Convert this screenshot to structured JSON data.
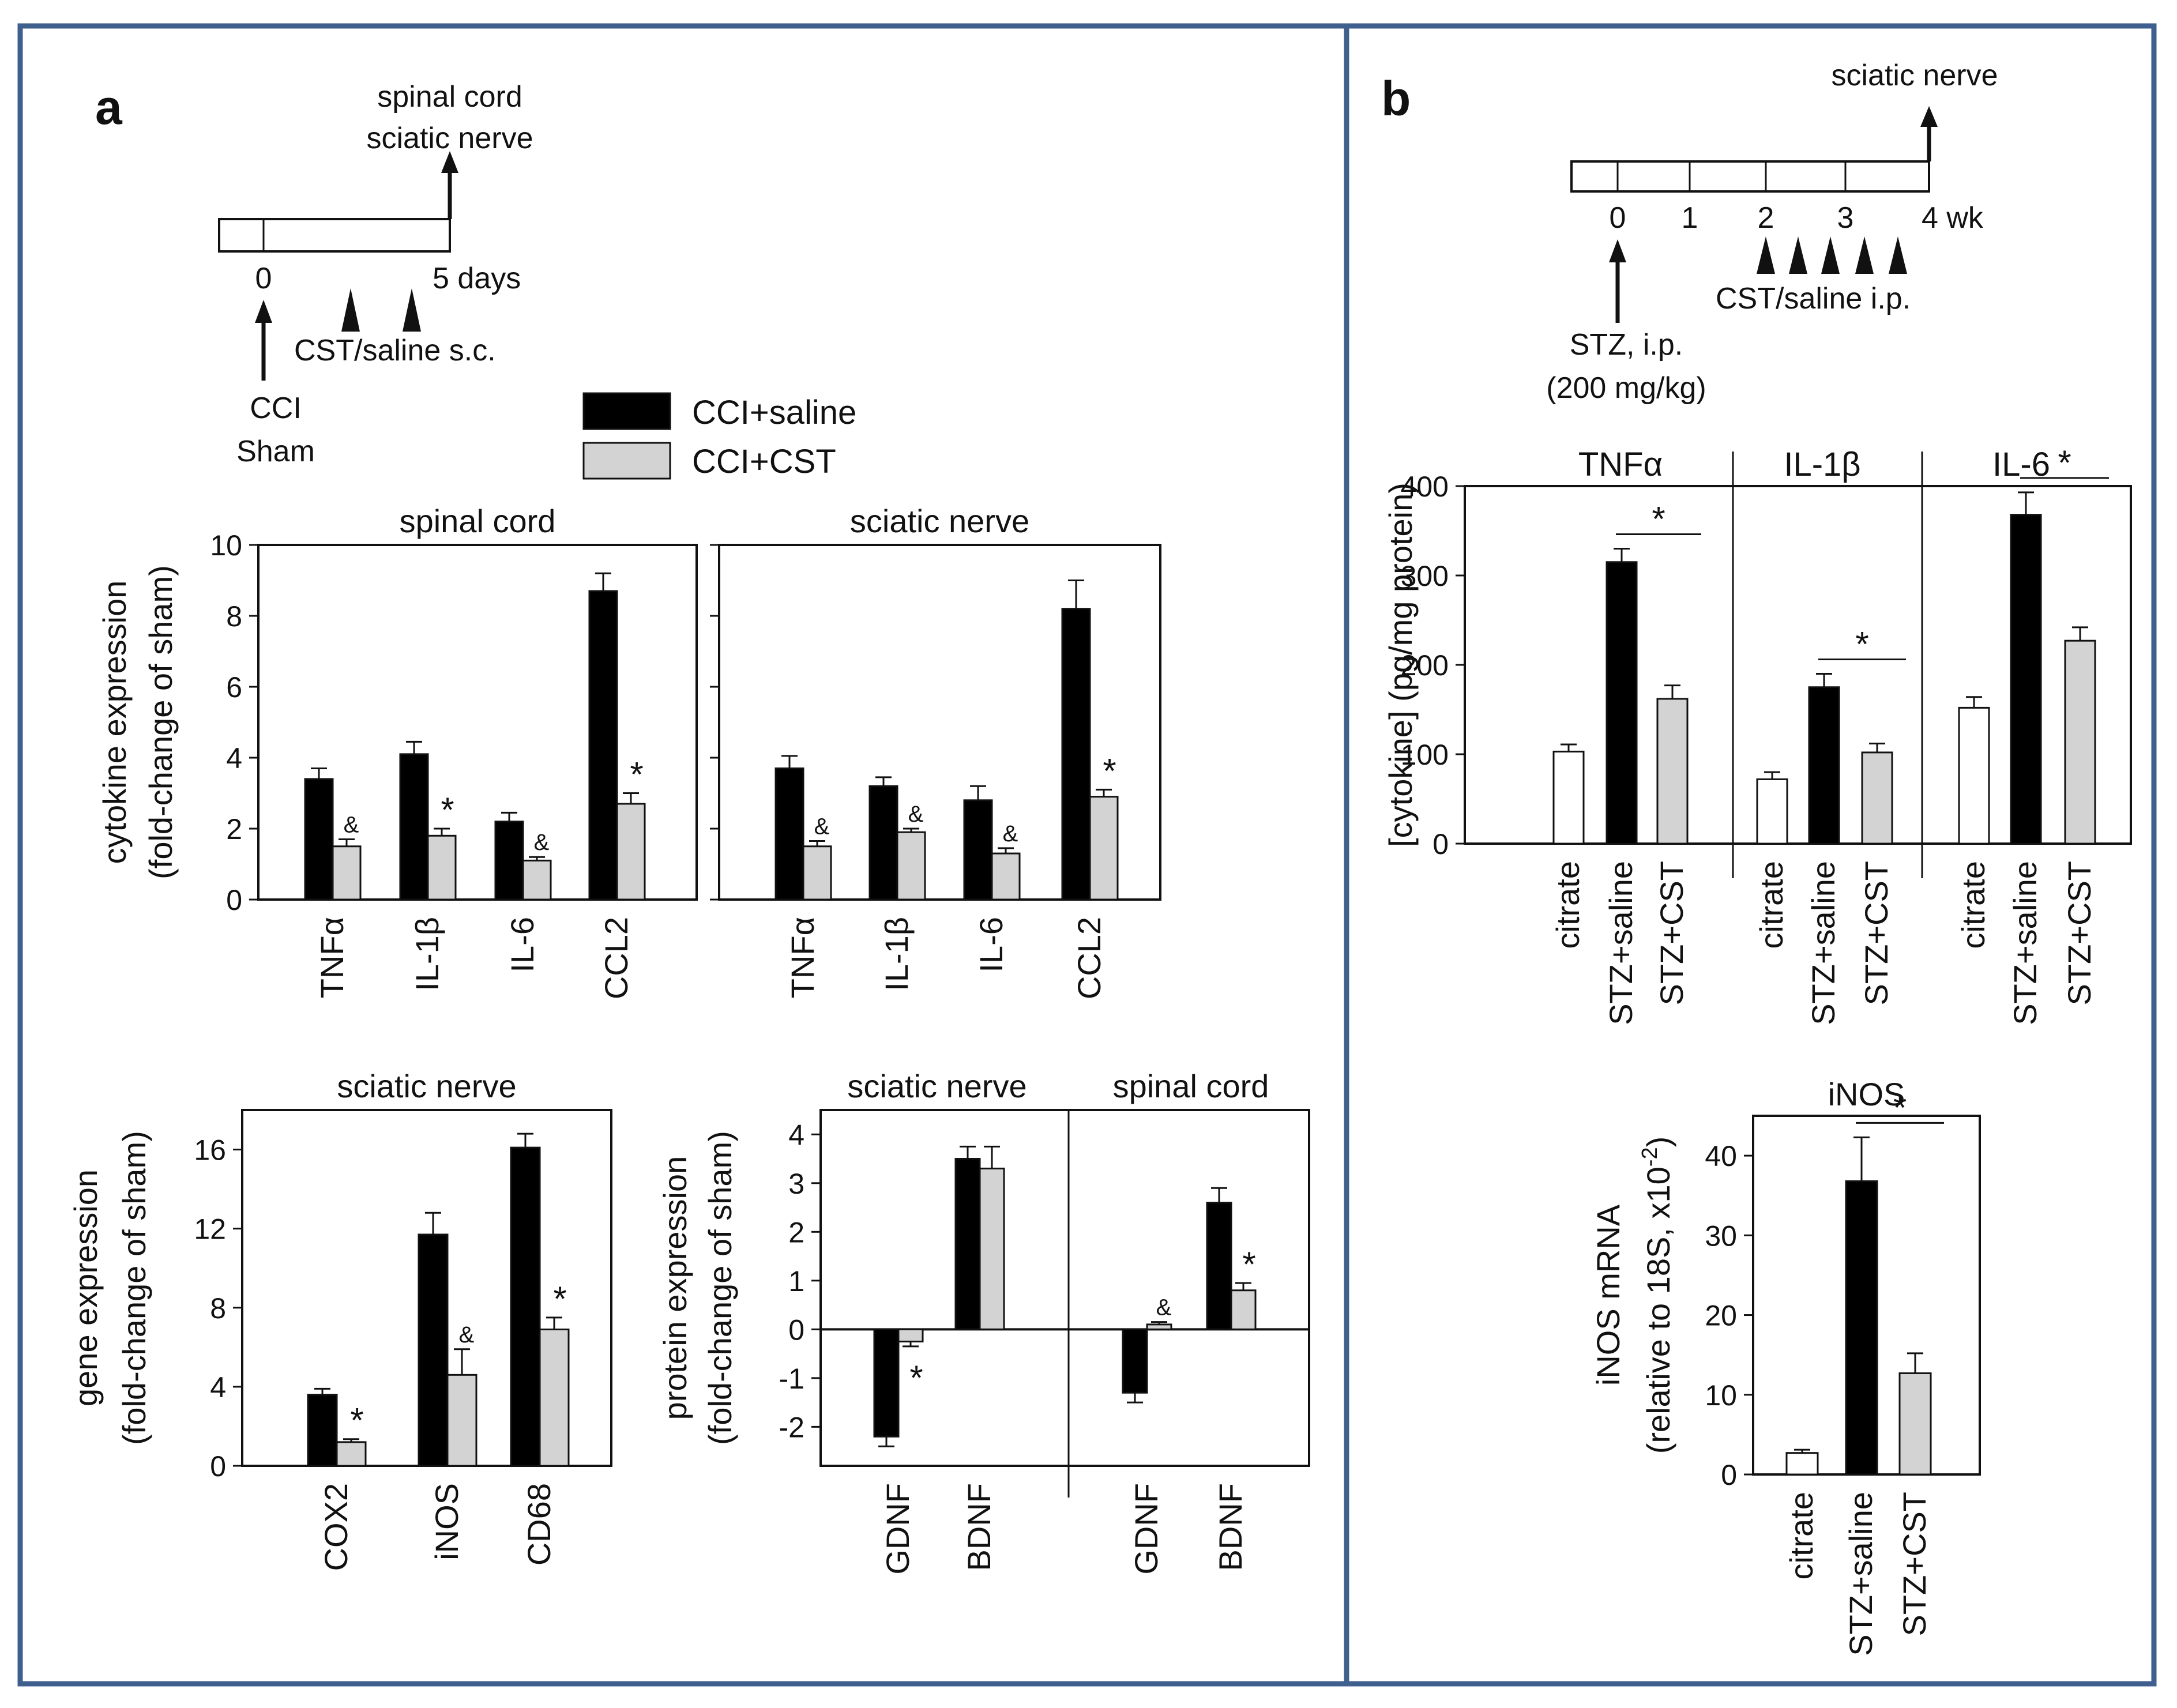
{
  "colors": {
    "frame": "#3f5f8f",
    "ccl_saline": "#000000",
    "ccl_cst": "#d3d3d3",
    "citrate": "#ffffff",
    "stroke": "#111111"
  },
  "panel_a": {
    "label": "a",
    "timeline": {
      "top_label_1": "spinal cord",
      "top_label_2": "sciatic nerve",
      "tick_0": "0",
      "tick_end": "5 days",
      "treatment": "CST/saline s.c.",
      "start_1": "CCI",
      "start_2": "Sham"
    },
    "legend": [
      "CCI+saline",
      "CCI+CST"
    ]
  },
  "panel_b": {
    "label": "b",
    "timeline": {
      "top_label": "sciatic nerve",
      "ticks": [
        "0",
        "1",
        "2",
        "3",
        "4 wk"
      ],
      "treatment": "CST/saline i.p.",
      "start_1": "STZ, i.p.",
      "start_2": "(200 mg/kg)"
    }
  },
  "chart_data": [
    {
      "id": "a1",
      "type": "bar",
      "title": "spinal cord",
      "ylabel": [
        "cytokine expression",
        "(fold-change of sham)"
      ],
      "ylim": [
        0,
        10
      ],
      "yticks": [
        0,
        2,
        4,
        6,
        8,
        10
      ],
      "categories": [
        "TNFα",
        "IL-1β",
        "IL-6",
        "CCL2"
      ],
      "series": [
        {
          "name": "CCI+saline",
          "values": [
            3.4,
            4.1,
            2.2,
            8.7
          ],
          "errors": [
            0.3,
            0.35,
            0.25,
            0.5
          ]
        },
        {
          "name": "CCI+CST",
          "values": [
            1.5,
            1.8,
            1.1,
            2.7
          ],
          "errors": [
            0.2,
            0.2,
            0.1,
            0.3
          ],
          "marks": [
            "&",
            "*",
            "&",
            "*"
          ]
        }
      ]
    },
    {
      "id": "a2",
      "type": "bar",
      "title": "sciatic nerve",
      "ylabel": [],
      "ylim": [
        0,
        10
      ],
      "yticks": [
        0,
        2,
        4,
        6,
        8,
        10
      ],
      "categories": [
        "TNFα",
        "IL-1β",
        "IL-6",
        "CCL2"
      ],
      "series": [
        {
          "name": "CCI+saline",
          "values": [
            3.7,
            3.2,
            2.8,
            8.2
          ],
          "errors": [
            0.35,
            0.25,
            0.4,
            0.8
          ]
        },
        {
          "name": "CCI+CST",
          "values": [
            1.5,
            1.9,
            1.3,
            2.9
          ],
          "errors": [
            0.15,
            0.1,
            0.15,
            0.2
          ],
          "marks": [
            "&",
            "&",
            "&",
            "*"
          ]
        }
      ]
    },
    {
      "id": "a3",
      "type": "bar",
      "title": "sciatic nerve",
      "ylabel": [
        "gene expression",
        "(fold-change of sham)"
      ],
      "ylim": [
        0,
        18
      ],
      "yticks": [
        0,
        4,
        8,
        12,
        16
      ],
      "categories": [
        "COX2",
        "iNOS",
        "CD68"
      ],
      "series": [
        {
          "name": "CCI+saline",
          "values": [
            3.6,
            11.7,
            16.1
          ],
          "errors": [
            0.3,
            1.1,
            0.7
          ]
        },
        {
          "name": "CCI+CST",
          "values": [
            1.2,
            4.6,
            6.9
          ],
          "errors": [
            0.15,
            1.3,
            0.6
          ],
          "marks": [
            "*",
            "&",
            "*"
          ]
        }
      ]
    },
    {
      "id": "a4",
      "type": "bar",
      "title": "",
      "group_titles": [
        "sciatic nerve",
        "spinal cord"
      ],
      "ylabel": [
        "protein expression",
        "(fold-change of sham)"
      ],
      "ylim": [
        -2.8,
        4.5
      ],
      "yticks": [
        -2,
        -1,
        0,
        1,
        2,
        3,
        4
      ],
      "categories": [
        "GDNF",
        "BDNF",
        "GDNF",
        "BDNF"
      ],
      "series": [
        {
          "name": "CCI+saline",
          "values": [
            -2.2,
            3.5,
            -1.3,
            2.6
          ],
          "errors": [
            0.2,
            0.25,
            0.2,
            0.3
          ]
        },
        {
          "name": "CCI+CST",
          "values": [
            -0.25,
            3.3,
            0.1,
            0.8
          ],
          "errors": [
            0.1,
            0.45,
            0.05,
            0.15
          ],
          "marks": [
            "*",
            "",
            "&",
            "*"
          ]
        }
      ]
    },
    {
      "id": "b1",
      "type": "bar",
      "title": "",
      "group_titles": [
        "TNFα",
        "IL-1β",
        "IL-6"
      ],
      "ylabel": [
        "[cytokine] (pg/mg protein)"
      ],
      "ylim": [
        0,
        400
      ],
      "yticks": [
        0,
        100,
        200,
        300,
        400
      ],
      "categories": [
        "citrate",
        "STZ+saline",
        "STZ+CST",
        "citrate",
        "STZ+saline",
        "STZ+CST",
        "citrate",
        "STZ+saline",
        "STZ+CST"
      ],
      "values": [
        103,
        315,
        162,
        72,
        175,
        102,
        152,
        368,
        227
      ],
      "errors": [
        8,
        15,
        15,
        8,
        15,
        10,
        12,
        25,
        15
      ],
      "significance": [
        "*",
        "*",
        "*"
      ]
    },
    {
      "id": "b2",
      "type": "bar",
      "title": "iNOS",
      "ylabel": [
        "iNOS mRNA",
        "(relative to 18S, x10",
        "-2",
        ")"
      ],
      "ylim": [
        0,
        45
      ],
      "yticks": [
        0,
        10,
        20,
        30,
        40
      ],
      "categories": [
        "citrate",
        "STZ+saline",
        "STZ+CST"
      ],
      "values": [
        2.7,
        36.8,
        12.7
      ],
      "errors": [
        0.4,
        5.5,
        2.5
      ],
      "significance": [
        "*"
      ]
    }
  ]
}
